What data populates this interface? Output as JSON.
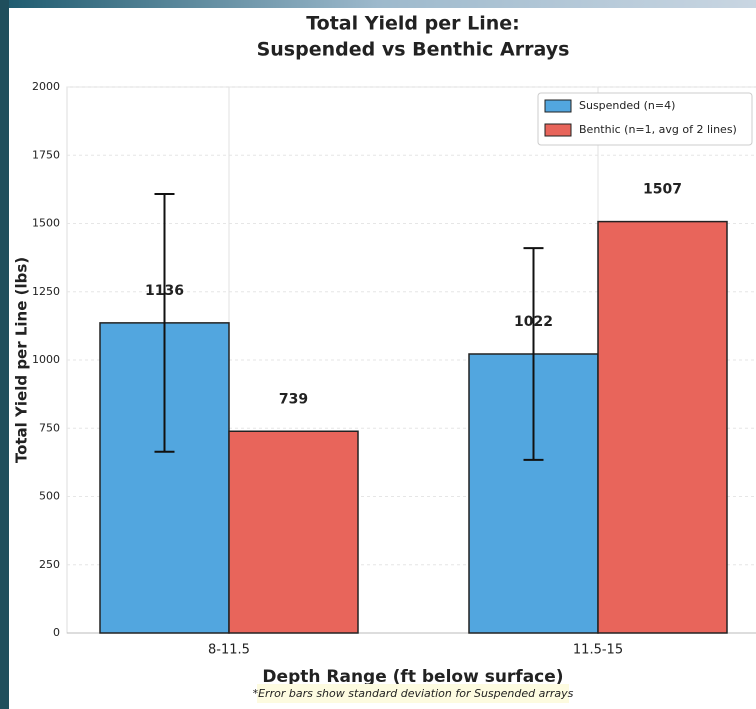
{
  "chart_data": {
    "type": "bar",
    "title": [
      "Total Yield per Line:",
      "Suspended vs Benthic Arrays"
    ],
    "x_label": "Depth Range (ft below surface)",
    "y_label": "Total Yield per Line (lbs)",
    "note": "*Error bars show standard deviation for Suspended arrays",
    "categories": [
      "8-11.5",
      "11.5-15"
    ],
    "series": [
      {
        "name": "Suspended (n=4)",
        "color": "#52a6df",
        "values": [
          1136,
          1022
        ],
        "errors": [
          472,
          388
        ]
      },
      {
        "name": "Benthic (n=1, avg of 2 lines)",
        "color": "#e8655b",
        "values": [
          739,
          1507
        ]
      }
    ],
    "ylim": [
      0,
      2000
    ],
    "yticks": [
      0,
      250,
      500,
      750,
      1000,
      1250,
      1500,
      1750,
      2000
    ],
    "grid": true,
    "legend": "upper right"
  }
}
